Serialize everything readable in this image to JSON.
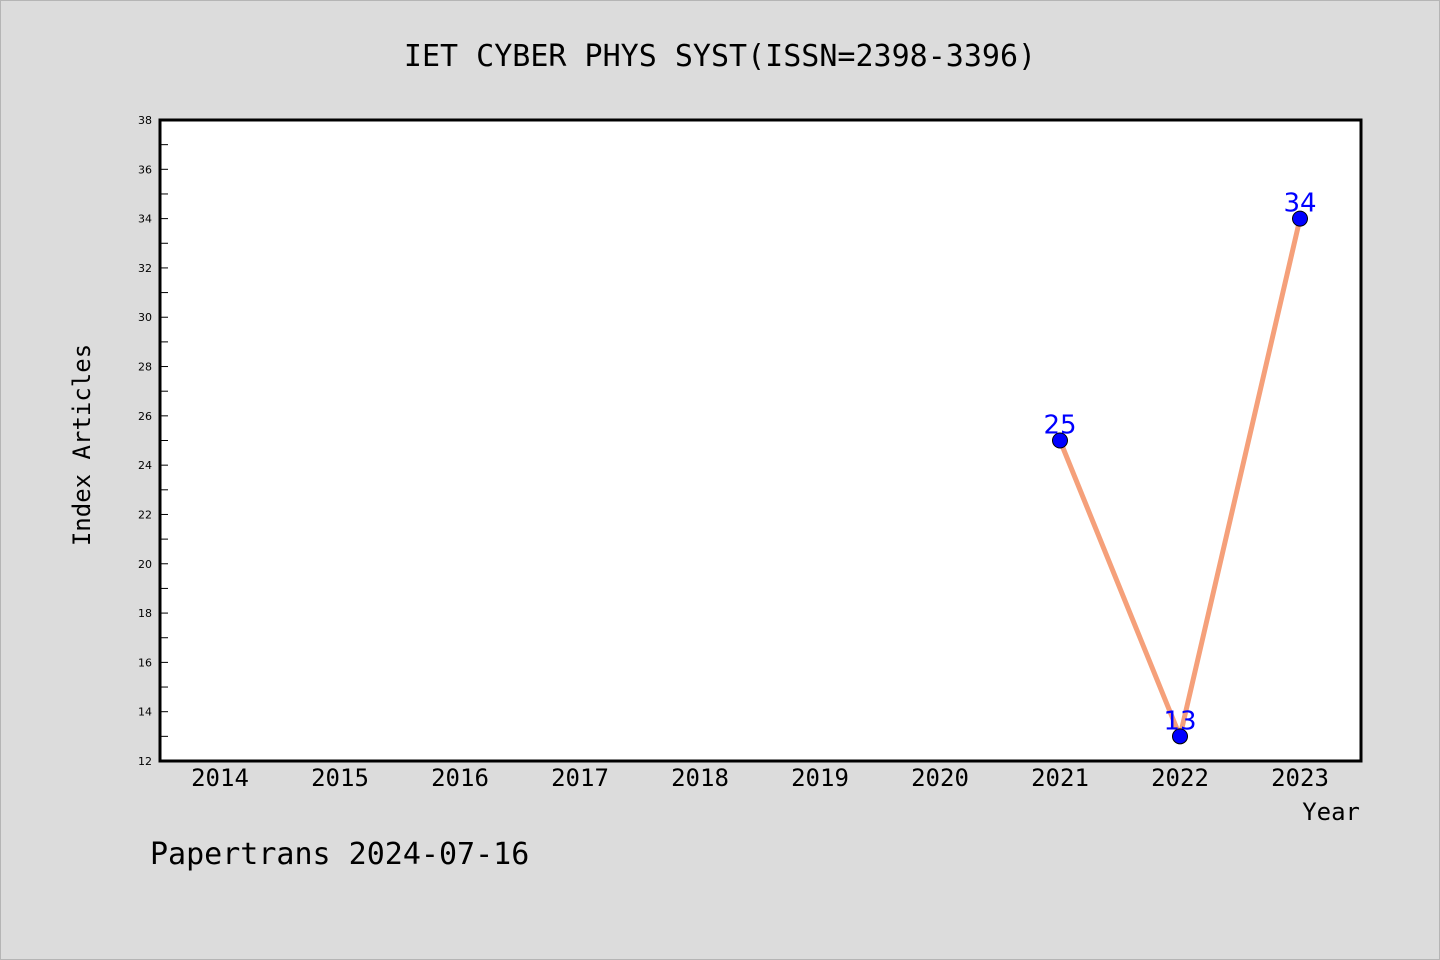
{
  "chart_data": {
    "type": "line",
    "title": "IET CYBER PHYS SYST(ISSN=2398-3396)",
    "xlabel": "Year",
    "ylabel": "Index Articles",
    "categories": [
      "2014",
      "2015",
      "2016",
      "2017",
      "2018",
      "2019",
      "2020",
      "2021",
      "2022",
      "2023"
    ],
    "series": [
      {
        "x": [
          "2021",
          "2022",
          "2023"
        ],
        "values": [
          25,
          13,
          34
        ],
        "data_labels": [
          "25",
          "13",
          "34"
        ]
      }
    ],
    "ylim": [
      12,
      38
    ],
    "yticks": [
      12,
      14,
      16,
      18,
      20,
      22,
      24,
      26,
      28,
      30,
      32,
      34,
      36,
      38
    ],
    "ytick_labels": [
      "12",
      "14",
      "16",
      "18",
      "20",
      "22",
      "24",
      "26",
      "28",
      "30",
      "32",
      "34",
      "36",
      "38"
    ],
    "grid": false,
    "legend": "none",
    "colors": {
      "line": "#f5a07a",
      "marker": "#0000ff",
      "data_label": "#0000ff",
      "plot_background": "#ffffff",
      "figure_background": "#dcdcdc"
    }
  },
  "footer": {
    "watermark": "Papertrans 2024-07-16"
  }
}
